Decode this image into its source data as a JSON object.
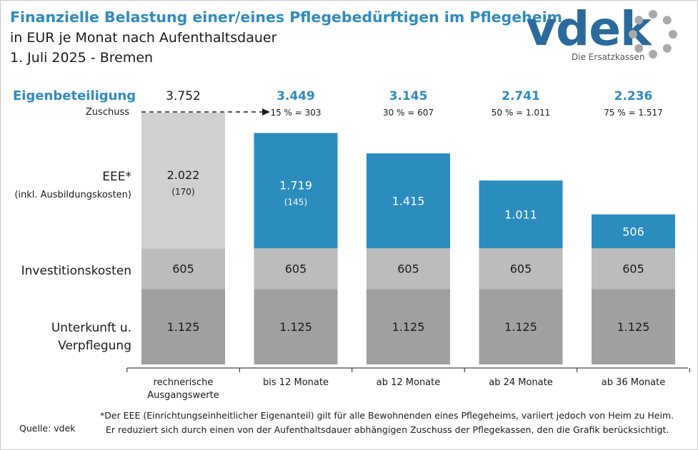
{
  "header": {
    "title": "Finanzielle Belastung einer/eines Pflegebedürftigen im Pflegeheim",
    "subtitle": "in EUR je Monat nach Aufenthaltsdauer",
    "date_line": "1. Juli 2025 - Bremen"
  },
  "logo": {
    "text": "vdek",
    "tagline": "Die Ersatzkassen",
    "color": "#2a6a9c"
  },
  "row_labels": {
    "eigen": "Eigenbeteiligung",
    "zuschuss": "Zuschuss",
    "eee_line1": "EEE*",
    "eee_line2": "(inkl. Ausbildungskosten)",
    "invest": "Investitionskosten",
    "unterkunft_line1": "Unterkunft u.",
    "unterkunft_line2": "Verpflegung"
  },
  "footnote": {
    "line1": "*Der EEE (Einrichtungseinheitlicher Eigenanteil) gilt für alle Bewohnenden eines Pflegeheims, variiert jedoch von Heim zu Heim.",
    "line2": "Er reduziert sich durch einen von der Aufenthaltsdauer abhängigen Zuschuss der Pflegekassen, den die Grafik berücksichtigt."
  },
  "source": "Quelle: vdek",
  "chart_data": {
    "type": "bar",
    "stacked": true,
    "categories": [
      "rechnerische\nAusgangswerte",
      "bis 12 Monate",
      "ab 12 Monate",
      "ab 24 Monate",
      "ab 36 Monate"
    ],
    "series": [
      {
        "name": "Unterkunft u. Verpflegung",
        "values": [
          1125,
          1125,
          1125,
          1125,
          1125
        ],
        "labels": [
          "1.125",
          "1.125",
          "1.125",
          "1.125",
          "1.125"
        ],
        "color": "#a0a0a0"
      },
      {
        "name": "Investitionskosten",
        "values": [
          605,
          605,
          605,
          605,
          605
        ],
        "labels": [
          "605",
          "605",
          "605",
          "605",
          "605"
        ],
        "color": "#bcbcbc"
      },
      {
        "name": "EEE*",
        "values": [
          2022,
          1719,
          1415,
          1011,
          506
        ],
        "labels": [
          "2.022",
          "1.719",
          "1.415",
          "1.011",
          "506"
        ],
        "sub_labels": [
          "(170)",
          "(145)",
          "",
          "",
          ""
        ],
        "colors": [
          "#d0d0d0",
          "#2b8cbe",
          "#2b8cbe",
          "#2b8cbe",
          "#2b8cbe"
        ]
      }
    ],
    "eigenbeteiligung": [
      3752,
      3449,
      3145,
      2741,
      2236
    ],
    "eigenbeteiligung_labels": [
      "3.752",
      "3.449",
      "3.145",
      "2.741",
      "2.236"
    ],
    "zuschuss_labels": [
      "",
      "15 % = 303",
      "30 % = 607",
      "50 % = 1.011",
      "75 % = 1.517"
    ],
    "accent_color": "#2e8bc0",
    "ylim": [
      0,
      3752
    ]
  }
}
